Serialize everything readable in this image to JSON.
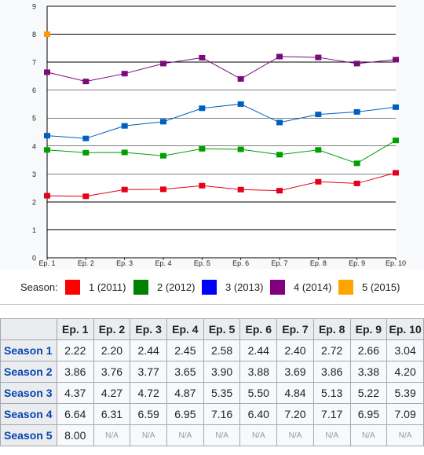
{
  "chart_data": {
    "type": "line",
    "categories": [
      "Ep. 1",
      "Ep. 2",
      "Ep. 3",
      "Ep. 4",
      "Ep. 5",
      "Ep. 6",
      "Ep. 7",
      "Ep. 8",
      "Ep. 9",
      "Ep. 10"
    ],
    "ylim": [
      0,
      9
    ],
    "yticks": [
      "0",
      "1",
      "2",
      "3",
      "4",
      "5",
      "6",
      "7",
      "8",
      "9"
    ],
    "grid": true,
    "legend_position": "bottom",
    "series": [
      {
        "name": "1 (2011)",
        "color": "#e2001a",
        "values": [
          2.22,
          2.2,
          2.44,
          2.45,
          2.58,
          2.44,
          2.4,
          2.72,
          2.66,
          3.04
        ]
      },
      {
        "name": "2 (2012)",
        "color": "#00a000",
        "values": [
          3.86,
          3.76,
          3.77,
          3.65,
          3.9,
          3.88,
          3.69,
          3.86,
          3.38,
          4.2
        ]
      },
      {
        "name": "3 (2013)",
        "color": "#0060c0",
        "values": [
          4.37,
          4.27,
          4.72,
          4.87,
          5.35,
          5.5,
          4.84,
          5.13,
          5.22,
          5.39
        ]
      },
      {
        "name": "4 (2014)",
        "color": "#7b0a7b",
        "values": [
          6.64,
          6.31,
          6.59,
          6.95,
          7.16,
          6.4,
          7.2,
          7.17,
          6.95,
          7.09
        ]
      },
      {
        "name": "5 (2015)",
        "color": "#ff9900",
        "values": [
          8.0,
          null,
          null,
          null,
          null,
          null,
          null,
          null,
          null,
          null
        ]
      }
    ]
  },
  "legend": {
    "label": "Season:",
    "items": [
      {
        "text": "1 (2011)",
        "color": "#ff0000"
      },
      {
        "text": "2 (2012)",
        "color": "#008000"
      },
      {
        "text": "3 (2013)",
        "color": "#0000ff"
      },
      {
        "text": "4 (2014)",
        "color": "#800080"
      },
      {
        "text": "5 (2015)",
        "color": "#ffa500"
      }
    ]
  },
  "table": {
    "headers": [
      "Ep. 1",
      "Ep. 2",
      "Ep. 3",
      "Ep. 4",
      "Ep. 5",
      "Ep. 6",
      "Ep. 7",
      "Ep. 8",
      "Ep. 9",
      "Ep. 10"
    ],
    "rows": [
      {
        "label": "Season 1",
        "cells": [
          "2.22",
          "2.20",
          "2.44",
          "2.45",
          "2.58",
          "2.44",
          "2.40",
          "2.72",
          "2.66",
          "3.04"
        ]
      },
      {
        "label": "Season 2",
        "cells": [
          "3.86",
          "3.76",
          "3.77",
          "3.65",
          "3.90",
          "3.88",
          "3.69",
          "3.86",
          "3.38",
          "4.20"
        ]
      },
      {
        "label": "Season 3",
        "cells": [
          "4.37",
          "4.27",
          "4.72",
          "4.87",
          "5.35",
          "5.50",
          "4.84",
          "5.13",
          "5.22",
          "5.39"
        ]
      },
      {
        "label": "Season 4",
        "cells": [
          "6.64",
          "6.31",
          "6.59",
          "6.95",
          "7.16",
          "6.40",
          "7.20",
          "7.17",
          "6.95",
          "7.09"
        ]
      },
      {
        "label": "Season 5",
        "cells": [
          "8.00",
          "N/A",
          "N/A",
          "N/A",
          "N/A",
          "N/A",
          "N/A",
          "N/A",
          "N/A",
          "N/A"
        ]
      }
    ]
  }
}
